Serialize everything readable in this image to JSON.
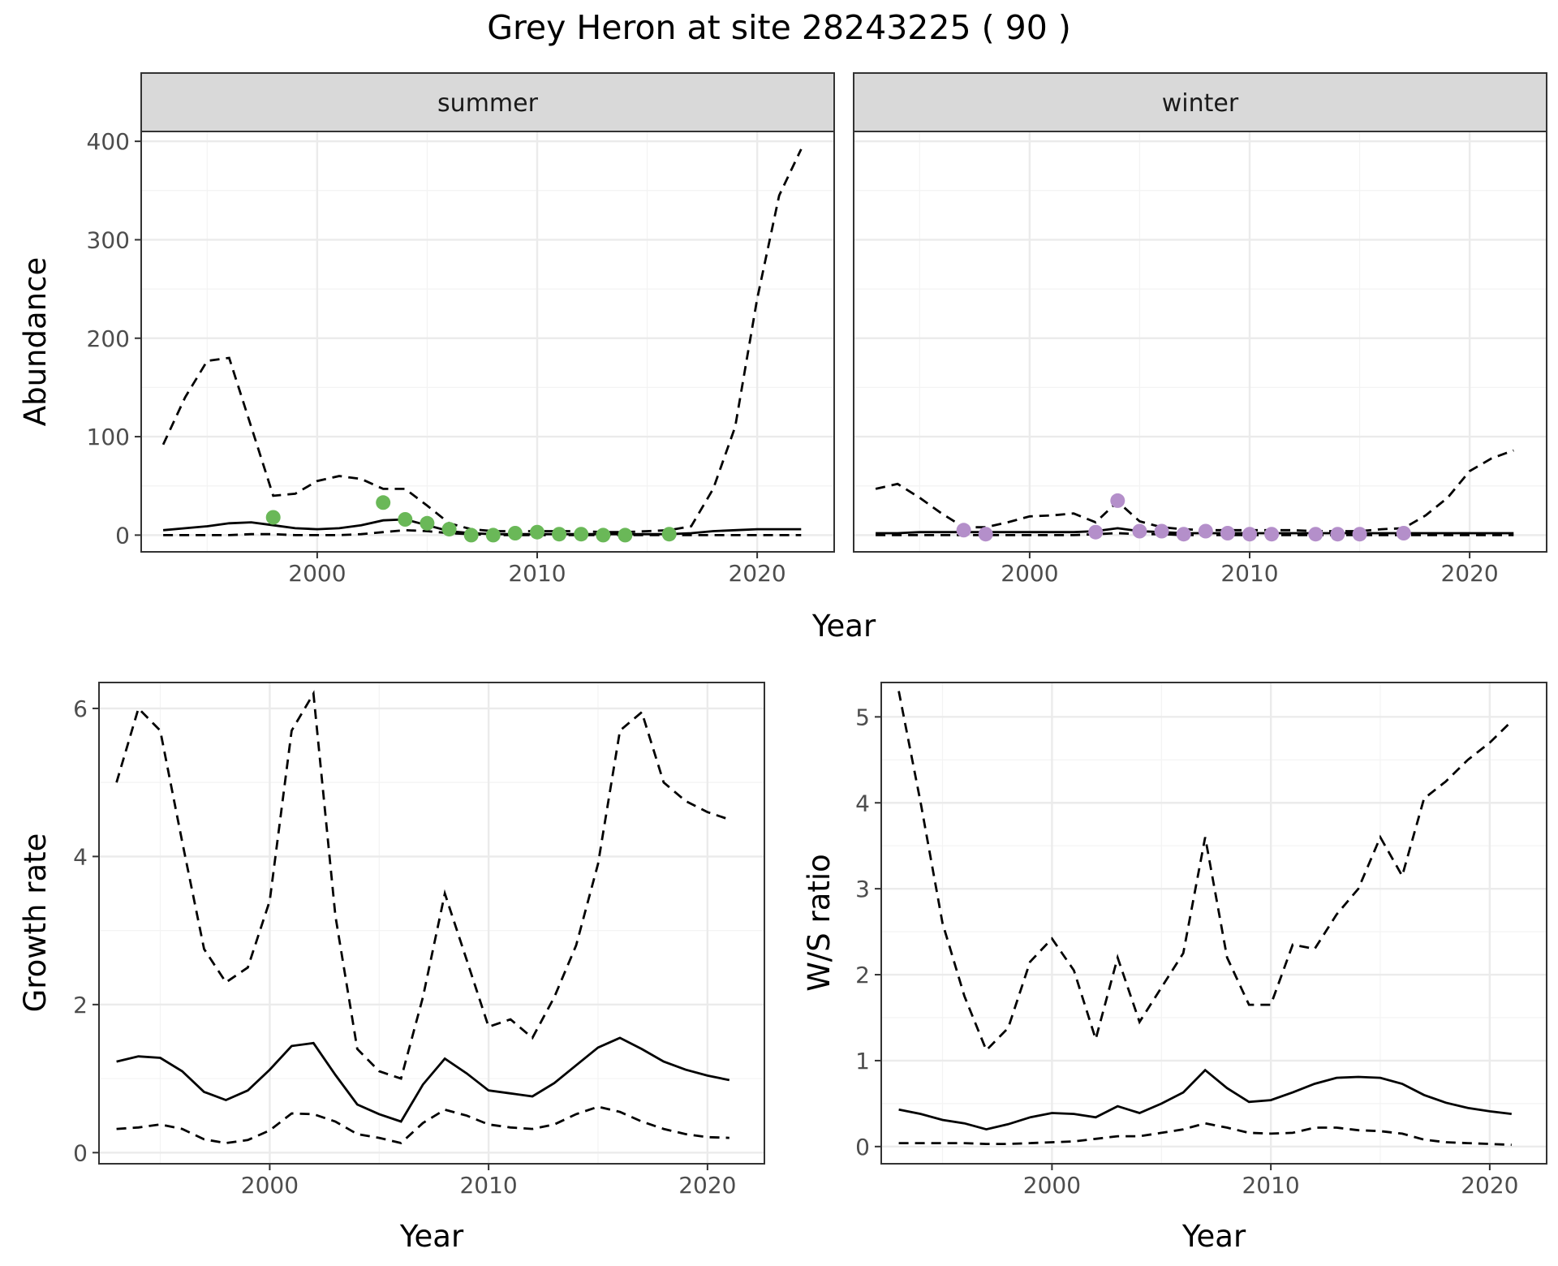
{
  "title": "Grey Heron at site 28243225 ( 90 )",
  "colors": {
    "summer_points": "#6ab858",
    "winter_points": "#b48fca",
    "strip_fill": "#d9d9d9"
  },
  "chart_data": [
    {
      "type": "line",
      "panel": "abundance",
      "facets": [
        "summer",
        "winter"
      ],
      "xlabel": "Year",
      "ylabel": "Abundance",
      "xlim": [
        1992,
        2023.5
      ],
      "ylim": [
        -17,
        410
      ],
      "xticks": [
        2000,
        2010,
        2020
      ],
      "yticks": [
        0,
        100,
        200,
        300,
        400
      ],
      "summer": {
        "x": [
          1993,
          1994,
          1995,
          1996,
          1997,
          1998,
          1999,
          2000,
          2001,
          2002,
          2003,
          2004,
          2005,
          2006,
          2007,
          2008,
          2009,
          2010,
          2011,
          2012,
          2013,
          2014,
          2015,
          2016,
          2017,
          2018,
          2019,
          2020,
          2021,
          2022
        ],
        "mean": [
          5,
          7,
          9,
          12,
          13,
          10,
          7,
          6,
          7,
          10,
          15,
          16,
          10,
          4,
          2,
          1,
          1,
          1,
          1,
          1,
          1,
          1,
          1,
          1,
          2,
          4,
          5,
          6,
          6,
          6
        ],
        "upper": [
          92,
          140,
          177,
          180,
          110,
          40,
          42,
          55,
          60,
          57,
          47,
          47,
          30,
          12,
          6,
          4,
          4,
          4,
          4,
          4,
          3,
          3,
          4,
          5,
          9,
          47,
          110,
          240,
          345,
          392
        ],
        "lower": [
          0,
          0,
          0,
          0,
          1,
          1,
          0,
          0,
          0,
          1,
          3,
          5,
          4,
          2,
          1,
          0,
          0,
          0,
          0,
          0,
          0,
          0,
          0,
          0,
          0,
          0,
          0,
          0,
          0,
          0
        ],
        "points": {
          "x": [
            1998,
            2003,
            2004,
            2005,
            2006,
            2007,
            2008,
            2009,
            2010,
            2011,
            2012,
            2013,
            2014,
            2016
          ],
          "y": [
            18,
            33,
            16,
            12,
            6,
            0,
            0,
            2,
            3,
            1,
            1,
            0,
            0,
            1
          ]
        }
      },
      "winter": {
        "x": [
          1993,
          1994,
          1995,
          1996,
          1997,
          1998,
          1999,
          2000,
          2001,
          2002,
          2003,
          2004,
          2005,
          2006,
          2007,
          2008,
          2009,
          2010,
          2011,
          2012,
          2013,
          2014,
          2015,
          2016,
          2017,
          2018,
          2019,
          2020,
          2021,
          2022
        ],
        "mean": [
          2,
          2,
          3,
          3,
          3,
          3,
          3,
          3,
          3,
          3,
          4,
          7,
          4,
          3,
          2,
          2,
          2,
          2,
          2,
          2,
          2,
          2,
          2,
          2,
          2,
          2,
          2,
          2,
          2,
          2
        ],
        "upper": [
          47,
          52,
          38,
          22,
          8,
          8,
          13,
          19,
          20,
          22,
          13,
          34,
          14,
          8,
          6,
          5,
          5,
          5,
          5,
          5,
          4,
          4,
          4,
          6,
          7,
          20,
          38,
          65,
          78,
          86
        ],
        "lower": [
          0,
          0,
          0,
          0,
          0,
          0,
          0,
          0,
          0,
          0,
          1,
          2,
          1,
          1,
          0,
          0,
          0,
          0,
          0,
          0,
          0,
          0,
          0,
          0,
          0,
          0,
          0,
          0,
          0,
          0
        ],
        "points": {
          "x": [
            1997,
            1998,
            2003,
            2004,
            2005,
            2006,
            2007,
            2008,
            2009,
            2010,
            2011,
            2013,
            2014,
            2015,
            2017
          ],
          "y": [
            5,
            1,
            3,
            35,
            4,
            4,
            1,
            4,
            2,
            1,
            1,
            1,
            1,
            1,
            2
          ]
        }
      }
    },
    {
      "type": "line",
      "panel": "growth",
      "xlabel": "Year",
      "ylabel": "Growth rate",
      "xlim": [
        1992.2,
        2022.6
      ],
      "ylim": [
        -0.15,
        6.35
      ],
      "xticks": [
        2000,
        2010,
        2020
      ],
      "yticks": [
        0,
        2,
        4,
        6
      ],
      "x": [
        1993,
        1994,
        1995,
        1996,
        1997,
        1998,
        1999,
        2000,
        2001,
        2002,
        2003,
        2004,
        2005,
        2006,
        2007,
        2008,
        2009,
        2010,
        2011,
        2012,
        2013,
        2014,
        2015,
        2016,
        2017,
        2018,
        2019,
        2020,
        2021
      ],
      "mean": [
        1.23,
        1.3,
        1.28,
        1.1,
        0.82,
        0.71,
        0.84,
        1.12,
        1.44,
        1.48,
        1.05,
        0.65,
        0.52,
        0.42,
        0.92,
        1.27,
        1.07,
        0.84,
        0.8,
        0.76,
        0.94,
        1.18,
        1.42,
        1.55,
        1.4,
        1.23,
        1.12,
        1.04,
        0.98
      ],
      "upper": [
        5.0,
        6.0,
        5.7,
        4.2,
        2.75,
        2.3,
        2.5,
        3.4,
        5.7,
        6.2,
        3.2,
        1.4,
        1.1,
        1.0,
        2.1,
        3.5,
        2.6,
        1.7,
        1.8,
        1.55,
        2.1,
        2.8,
        3.9,
        5.7,
        5.95,
        5.0,
        4.75,
        4.6,
        4.5
      ],
      "lower": [
        0.32,
        0.34,
        0.38,
        0.32,
        0.18,
        0.13,
        0.17,
        0.3,
        0.53,
        0.52,
        0.42,
        0.25,
        0.2,
        0.13,
        0.4,
        0.58,
        0.5,
        0.38,
        0.34,
        0.32,
        0.38,
        0.52,
        0.62,
        0.55,
        0.42,
        0.32,
        0.25,
        0.21,
        0.2
      ]
    },
    {
      "type": "line",
      "panel": "ratio",
      "xlabel": "Year",
      "ylabel": "W/S ratio",
      "xlim": [
        1992.2,
        2022.6
      ],
      "ylim": [
        -0.2,
        5.4
      ],
      "xticks": [
        2000,
        2010,
        2020
      ],
      "yticks": [
        0,
        1,
        2,
        3,
        4,
        5
      ],
      "x": [
        1993,
        1994,
        1995,
        1996,
        1997,
        1998,
        1999,
        2000,
        2001,
        2002,
        2003,
        2004,
        2005,
        2006,
        2007,
        2008,
        2009,
        2010,
        2011,
        2012,
        2013,
        2014,
        2015,
        2016,
        2017,
        2018,
        2019,
        2020,
        2021
      ],
      "mean": [
        0.43,
        0.38,
        0.31,
        0.27,
        0.2,
        0.26,
        0.34,
        0.39,
        0.38,
        0.34,
        0.47,
        0.39,
        0.5,
        0.63,
        0.89,
        0.68,
        0.52,
        0.54,
        0.63,
        0.73,
        0.8,
        0.81,
        0.8,
        0.73,
        0.6,
        0.51,
        0.45,
        0.41,
        0.38
      ],
      "upper": [
        5.3,
        4.0,
        2.6,
        1.75,
        1.12,
        1.38,
        2.15,
        2.42,
        2.05,
        1.25,
        2.2,
        1.45,
        1.85,
        2.25,
        3.6,
        2.2,
        1.65,
        1.65,
        2.35,
        2.3,
        2.7,
        3.0,
        3.6,
        3.15,
        4.05,
        4.25,
        4.5,
        4.7,
        4.95
      ],
      "lower": [
        0.04,
        0.04,
        0.04,
        0.04,
        0.03,
        0.03,
        0.04,
        0.05,
        0.06,
        0.09,
        0.12,
        0.12,
        0.16,
        0.2,
        0.27,
        0.22,
        0.16,
        0.15,
        0.16,
        0.22,
        0.22,
        0.19,
        0.18,
        0.15,
        0.08,
        0.05,
        0.04,
        0.03,
        0.02
      ]
    }
  ]
}
